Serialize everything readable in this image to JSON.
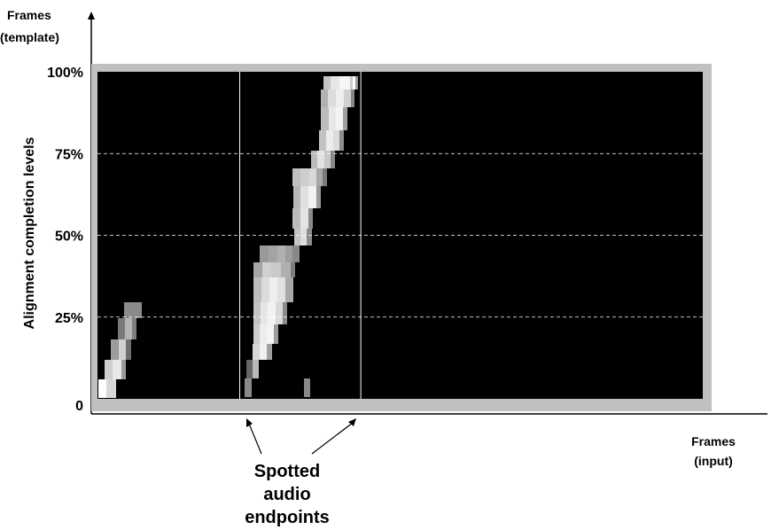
{
  "chart_data": {
    "type": "heatmap",
    "y_axis": {
      "title_line1": "Frames",
      "title_line2": "(template)",
      "label": "Alignment completion levels",
      "ticks": [
        "0",
        "25%",
        "50%",
        "75%",
        "100%"
      ],
      "tick_values": [
        0,
        25,
        50,
        75,
        100
      ],
      "range": [
        0,
        100
      ]
    },
    "x_axis": {
      "title_line1": "Frames",
      "title_line2": "(input)"
    },
    "grid": "dashed horizontal lines at 25%, 50%, 75%",
    "annotation": {
      "lines": [
        "Spotted",
        "audio",
        "endpoints"
      ],
      "target": "two vertical marker lines"
    },
    "colors": {
      "plot_background": "#000000",
      "plot_border": "#c0c0c0",
      "gridline": "#ffffff",
      "marker_line": "#ffffff"
    },
    "marker_positions_percent": [
      23.5,
      43.5
    ]
  }
}
